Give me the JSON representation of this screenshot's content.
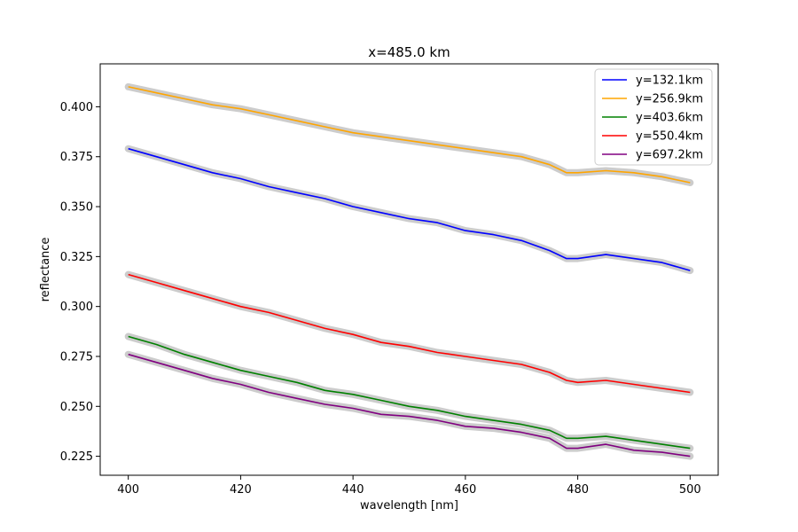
{
  "chart_data": {
    "type": "line",
    "title": "x=485.0 km",
    "xlabel": "wavelength [nm]",
    "ylabel": "reflectance",
    "xlim": [
      395,
      505
    ],
    "ylim": [
      0.2155,
      0.4215
    ],
    "x_ticks": [
      400,
      420,
      440,
      460,
      480,
      500
    ],
    "y_ticks": [
      0.225,
      0.25,
      0.275,
      0.3,
      0.325,
      0.35,
      0.375,
      0.4
    ],
    "y_tick_labels": [
      "0.225",
      "0.250",
      "0.275",
      "0.300",
      "0.325",
      "0.350",
      "0.375",
      "0.400"
    ],
    "grid": false,
    "legend_position": "top-right",
    "band_color": "#cccccc",
    "x": [
      400,
      405,
      410,
      415,
      420,
      425,
      430,
      435,
      440,
      445,
      450,
      455,
      460,
      465,
      470,
      475,
      478,
      480,
      485,
      490,
      495,
      500
    ],
    "series": [
      {
        "name": "y=132.1km",
        "color": "#0000ff",
        "values": [
          0.379,
          0.375,
          0.371,
          0.367,
          0.364,
          0.36,
          0.357,
          0.354,
          0.35,
          0.347,
          0.344,
          0.342,
          0.338,
          0.336,
          0.333,
          0.328,
          0.324,
          0.324,
          0.326,
          0.324,
          0.322,
          0.318
        ]
      },
      {
        "name": "y=256.9km",
        "color": "#ffa500",
        "values": [
          0.41,
          0.407,
          0.404,
          0.401,
          0.399,
          0.396,
          0.393,
          0.39,
          0.387,
          0.385,
          0.383,
          0.381,
          0.379,
          0.377,
          0.375,
          0.371,
          0.367,
          0.367,
          0.368,
          0.367,
          0.365,
          0.362
        ]
      },
      {
        "name": "y=403.6km",
        "color": "#008000",
        "values": [
          0.285,
          0.281,
          0.276,
          0.272,
          0.268,
          0.265,
          0.262,
          0.258,
          0.256,
          0.253,
          0.25,
          0.248,
          0.245,
          0.243,
          0.241,
          0.238,
          0.234,
          0.234,
          0.235,
          0.233,
          0.231,
          0.229
        ]
      },
      {
        "name": "y=550.4km",
        "color": "#ff0000",
        "values": [
          0.316,
          0.312,
          0.308,
          0.304,
          0.3,
          0.297,
          0.293,
          0.289,
          0.286,
          0.282,
          0.28,
          0.277,
          0.275,
          0.273,
          0.271,
          0.267,
          0.263,
          0.262,
          0.263,
          0.261,
          0.259,
          0.257
        ]
      },
      {
        "name": "y=697.2km",
        "color": "#800080",
        "values": [
          0.276,
          0.272,
          0.268,
          0.264,
          0.261,
          0.257,
          0.254,
          0.251,
          0.249,
          0.246,
          0.245,
          0.243,
          0.24,
          0.239,
          0.237,
          0.234,
          0.229,
          0.229,
          0.231,
          0.228,
          0.227,
          0.225
        ]
      }
    ]
  }
}
